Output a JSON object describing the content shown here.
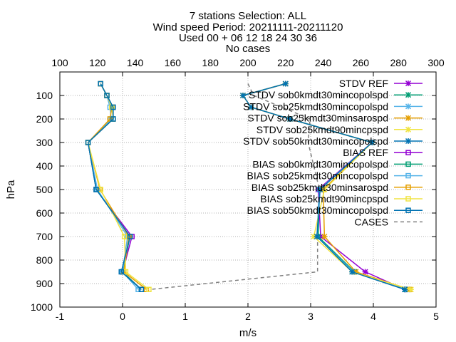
{
  "chart_data": {
    "type": "line",
    "title_lines": [
      "7 stations Selection: ALL",
      "Wind speed  Period: 20211111-20211120",
      "Used 00 + 06 12 18 24 30 36",
      "No cases"
    ],
    "xlabel": "m/s",
    "ylabel": "hPa",
    "xlim": [
      -1,
      5
    ],
    "x2lim": [
      100,
      300
    ],
    "ylim": [
      1000,
      0
    ],
    "x_ticks": [
      "-1",
      "0",
      "1",
      "2",
      "3",
      "4",
      "5"
    ],
    "x2_ticks": [
      "100",
      "120",
      "140",
      "160",
      "180",
      "200",
      "220",
      "240",
      "260",
      "280",
      "300"
    ],
    "y_ticks": [
      "100",
      "200",
      "300",
      "400",
      "500",
      "600",
      "700",
      "800",
      "900",
      "1000"
    ],
    "grid": true,
    "legend_position": "top-right",
    "levels": [
      50,
      100,
      150,
      200,
      300,
      500,
      700,
      850,
      925
    ],
    "series": [
      {
        "name": "STDV REF",
        "color": "#9400d3",
        "marker": "x",
        "values": [
          2.6,
          1.92,
          2.05,
          2.67,
          3.98,
          3.12,
          3.16,
          3.87,
          4.5
        ]
      },
      {
        "name": "STDV sob0kmdt30mincopolspd",
        "color": "#009e73",
        "marker": "x",
        "values": [
          2.6,
          1.92,
          2.05,
          2.67,
          3.98,
          3.14,
          3.12,
          3.7,
          4.52
        ]
      },
      {
        "name": "STDV sob25kmdt30mincopolspd",
        "color": "#56b4e9",
        "marker": "x",
        "values": [
          2.6,
          1.92,
          2.05,
          2.67,
          3.98,
          3.14,
          3.1,
          3.68,
          4.55
        ]
      },
      {
        "name": "STDV sob25kmdt30minsarospd",
        "color": "#e69f00",
        "marker": "x",
        "values": [
          2.6,
          1.92,
          2.05,
          2.67,
          3.98,
          3.2,
          3.22,
          3.72,
          4.58
        ]
      },
      {
        "name": "STDV sob25kmdt90mincpspd",
        "color": "#f0e442",
        "marker": "x",
        "values": [
          2.6,
          1.92,
          2.05,
          2.67,
          3.98,
          3.22,
          3.05,
          3.66,
          4.6
        ]
      },
      {
        "name": "STDV sob50kmdt30mincopolspd",
        "color": "#0072b2",
        "marker": "x",
        "values": [
          2.6,
          1.92,
          2.05,
          2.67,
          3.98,
          3.15,
          3.1,
          3.66,
          4.5
        ]
      },
      {
        "name": "BIAS REF",
        "color": "#9400d3",
        "marker": "square",
        "values": [
          -0.35,
          -0.25,
          -0.15,
          -0.15,
          -0.55,
          -0.42,
          0.15,
          0.0,
          0.3
        ]
      },
      {
        "name": "BIAS sob0kmdt30mincopolspd",
        "color": "#009e73",
        "marker": "square",
        "values": [
          -0.35,
          -0.25,
          -0.15,
          -0.15,
          -0.55,
          -0.42,
          0.12,
          0.0,
          0.3
        ]
      },
      {
        "name": "BIAS sob25kmdt30mincopolspd",
        "color": "#56b4e9",
        "marker": "square",
        "values": [
          -0.35,
          -0.25,
          -0.2,
          -0.18,
          -0.55,
          -0.4,
          0.08,
          0.0,
          0.25
        ]
      },
      {
        "name": "BIAS sob25kmdt30minsarospd",
        "color": "#e69f00",
        "marker": "square",
        "values": [
          -0.35,
          -0.25,
          -0.17,
          -0.2,
          -0.55,
          -0.36,
          0.1,
          0.02,
          0.38
        ]
      },
      {
        "name": "BIAS sob25kmdt90mincpspd",
        "color": "#f0e442",
        "marker": "square",
        "values": [
          -0.35,
          -0.25,
          -0.17,
          -0.15,
          -0.55,
          -0.35,
          0.03,
          0.05,
          0.42
        ]
      },
      {
        "name": "BIAS sob50kmdt30mincopolspd",
        "color": "#0072b2",
        "marker": "square",
        "values": [
          -0.35,
          -0.25,
          -0.15,
          -0.15,
          -0.55,
          -0.42,
          0.12,
          -0.02,
          0.3
        ]
      }
    ],
    "cases": {
      "name": "CASES",
      "color": "#808080",
      "axis": "x2",
      "levels": [
        50,
        100,
        200,
        300,
        500,
        700,
        850,
        925
      ],
      "values": [
        200,
        203,
        233,
        232,
        238,
        237,
        237,
        148
      ]
    }
  }
}
